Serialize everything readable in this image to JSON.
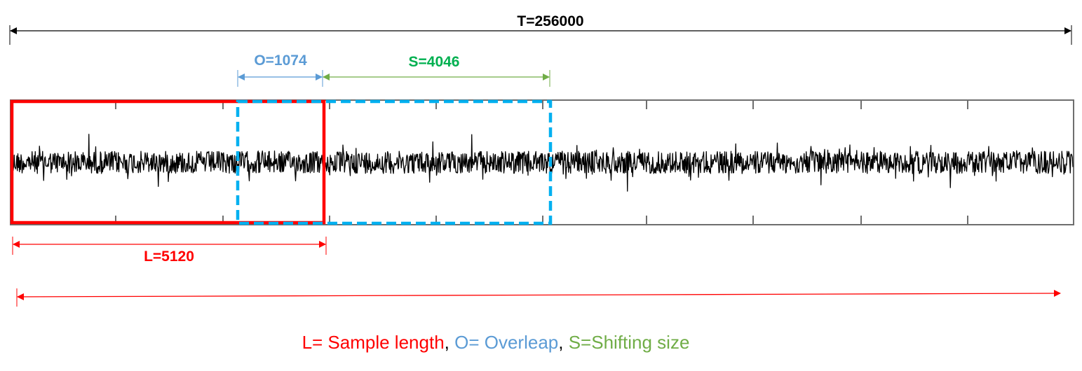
{
  "labels": {
    "total": "T=256000",
    "overlap": "O=1074",
    "shift": "S=4046",
    "length": "L=5120"
  },
  "legend": {
    "length": "L= Sample length",
    "sep1": ", ",
    "overlap": "O= Overleap",
    "sep2": ", ",
    "shift": "S=Shifting size"
  },
  "colors": {
    "length": "#ff0000",
    "overlap": "#5b9bd5",
    "shift": "#00b050",
    "shift_arrow": "#70ad47",
    "window_dashed": "#00b0f0",
    "total": "#000000",
    "signal": "#000000"
  }
}
